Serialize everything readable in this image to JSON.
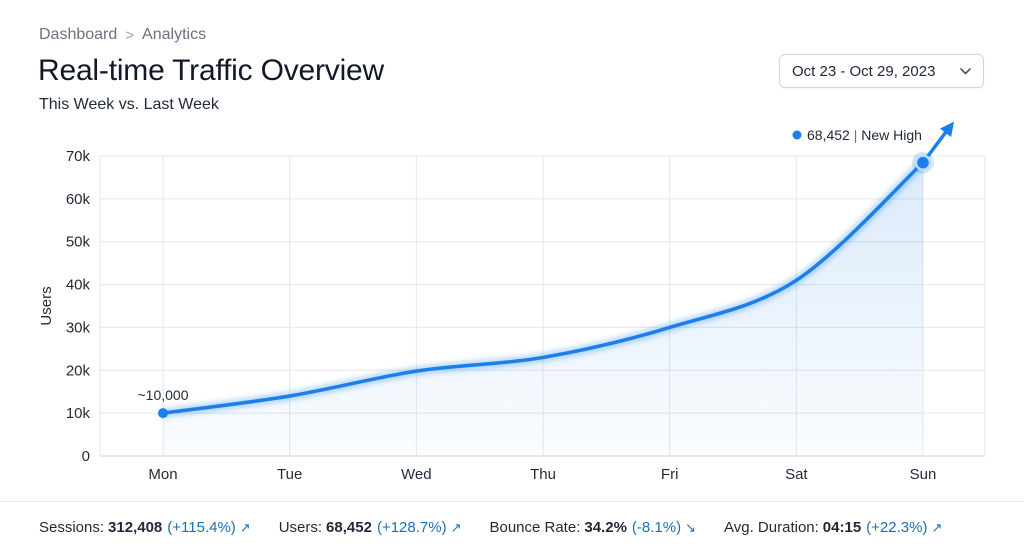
{
  "breadcrumb": {
    "items": [
      "Dashboard",
      "Analytics"
    ],
    "separator": ">"
  },
  "header": {
    "title": "Real-time Traffic Overview",
    "subtitle": "This Week vs. Last Week"
  },
  "date_picker": {
    "value": "Oct 23 - Oct 29, 2023",
    "icon": "chevron-down-icon"
  },
  "chart_data": {
    "type": "line",
    "categories": [
      "Mon",
      "Tue",
      "Wed",
      "Thu",
      "Fri",
      "Sat",
      "Sun"
    ],
    "series": [
      {
        "values": [
          10000,
          14000,
          19800,
          23000,
          30000,
          41000,
          68452
        ],
        "color": "#1a7fe8"
      }
    ],
    "ylabel": "Users",
    "xlabel": "",
    "ylim": [
      0,
      70000
    ],
    "yticks": [
      0,
      10000,
      20000,
      30000,
      40000,
      50000,
      60000,
      70000
    ],
    "ytick_labels": [
      "0",
      "10k",
      "20k",
      "30k",
      "40k",
      "50k",
      "60k",
      "70k"
    ],
    "grid": true,
    "annotations": {
      "start": {
        "text": "~10,000"
      },
      "end_value": "68,452",
      "end_sep": "|",
      "end_text": "New High"
    }
  },
  "stats": [
    {
      "label": "Sessions:",
      "value": "312,408",
      "change": "(+115.4%)",
      "direction": "up"
    },
    {
      "label": "Users:",
      "value": "68,452",
      "change": "(+128.7%)",
      "direction": "up"
    },
    {
      "label": "Bounce Rate:",
      "value": "34.2%",
      "change": "(-8.1%)",
      "direction": "down"
    },
    {
      "label": "Avg. Duration:",
      "value": "04:15",
      "change": "(+22.3%)",
      "direction": "up"
    }
  ]
}
